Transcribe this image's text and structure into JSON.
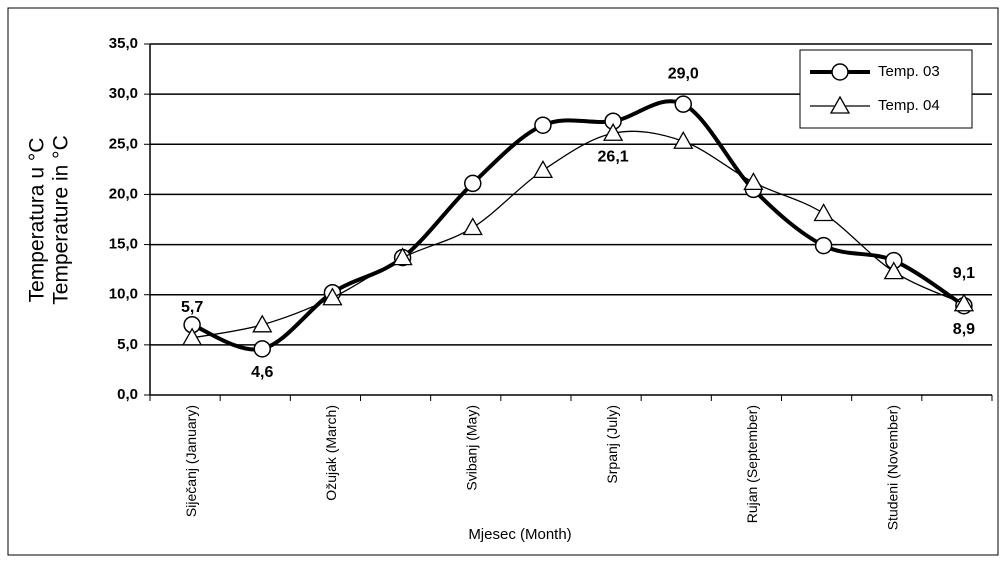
{
  "chart_data": {
    "type": "line",
    "ylabel": [
      "Temperatura u °C",
      "Temperature in °C"
    ],
    "xlabel": "Mjesec (Month)",
    "categories": [
      "Siječanj (January)",
      null,
      "Ožujak (March)",
      null,
      "Svibanj (May)",
      null,
      "Srpanj (July)",
      null,
      "Rujan (September)",
      null,
      "Studeni (November)",
      null
    ],
    "series": [
      {
        "name": "Temp. 03",
        "color": "#000000",
        "marker": "circle",
        "width": 4,
        "values": [
          7.0,
          4.6,
          10.2,
          13.7,
          21.1,
          26.9,
          27.3,
          29.0,
          20.5,
          14.9,
          13.4,
          8.9
        ],
        "value_labels": [
          null,
          "4,6",
          null,
          null,
          null,
          null,
          null,
          "29,0",
          null,
          null,
          null,
          "8,9"
        ]
      },
      {
        "name": "Temp. 04",
        "color": "#000000",
        "marker": "triangle",
        "width": 1.3,
        "values": [
          5.7,
          7.0,
          9.7,
          13.7,
          16.7,
          22.4,
          26.1,
          25.3,
          21.2,
          18.1,
          12.3,
          9.1
        ],
        "value_labels": [
          "5,7",
          null,
          null,
          null,
          null,
          null,
          "26,1",
          null,
          null,
          null,
          null,
          "9,1"
        ]
      }
    ],
    "ylim": [
      0,
      35
    ],
    "yticks": [
      {
        "value": 0,
        "label": "0,0"
      },
      {
        "value": 5,
        "label": "5,0"
      },
      {
        "value": 10,
        "label": "10,0"
      },
      {
        "value": 15,
        "label": "15,0"
      },
      {
        "value": 20,
        "label": "20,0"
      },
      {
        "value": 25,
        "label": "25,0"
      },
      {
        "value": 30,
        "label": "30,0"
      },
      {
        "value": 35,
        "label": "35,0"
      }
    ],
    "grid": true,
    "legend": "upper right"
  }
}
